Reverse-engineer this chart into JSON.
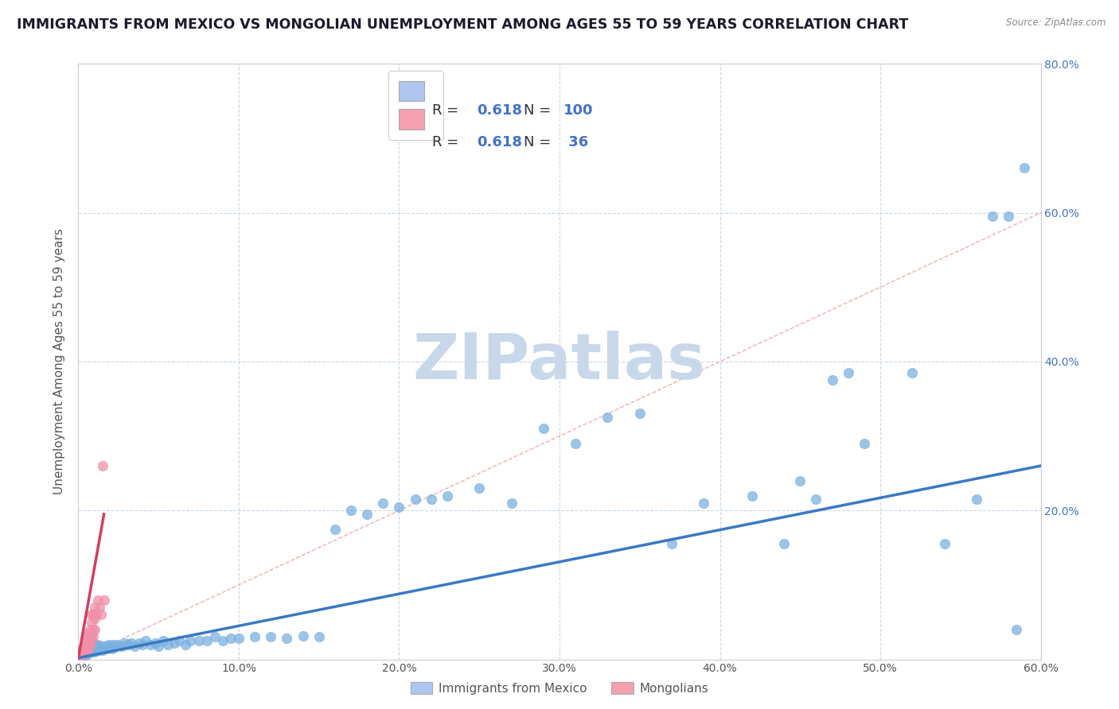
{
  "title": "IMMIGRANTS FROM MEXICO VS MONGOLIAN UNEMPLOYMENT AMONG AGES 55 TO 59 YEARS CORRELATION CHART",
  "source": "Source: ZipAtlas.com",
  "ylabel": "Unemployment Among Ages 55 to 59 years",
  "xlim": [
    0,
    0.6
  ],
  "ylim": [
    0,
    0.8
  ],
  "xtick_vals": [
    0.0,
    0.1,
    0.2,
    0.3,
    0.4,
    0.5,
    0.6
  ],
  "ytick_vals": [
    0.0,
    0.2,
    0.4,
    0.6,
    0.8
  ],
  "xtick_labels": [
    "0.0%",
    "10.0%",
    "20.0%",
    "30.0%",
    "40.0%",
    "50.0%",
    "60.0%"
  ],
  "ytick_labels_left": [
    "",
    "",
    "",
    "",
    ""
  ],
  "ytick_labels_right": [
    "",
    "20.0%",
    "40.0%",
    "60.0%",
    "80.0%"
  ],
  "legend_label_blue": "Immigrants from Mexico",
  "legend_label_pink": "Mongolians",
  "legend_color_blue": "#aec6f0",
  "legend_color_pink": "#f4a0b0",
  "r_blue": "0.618",
  "n_blue": "100",
  "r_pink": "0.618",
  "n_pink": "36",
  "scatter_color_blue": "#7ab0e0",
  "scatter_color_pink": "#f090a8",
  "trend_color_blue": "#3a78c4",
  "trend_color_pink": "#d04060",
  "diag_color": "#f0a0a0",
  "grid_color": "#c8d8e8",
  "watermark_text": "ZIPatlas",
  "watermark_color": "#c8d8ea",
  "background_color": "#ffffff",
  "title_color": "#1a1a2e",
  "accent_color": "#4472c4",
  "title_fontsize": 12.5,
  "tick_fontsize": 10,
  "label_fontsize": 11,
  "blue_x": [
    0.002,
    0.003,
    0.003,
    0.004,
    0.004,
    0.004,
    0.005,
    0.005,
    0.005,
    0.005,
    0.006,
    0.006,
    0.006,
    0.007,
    0.007,
    0.007,
    0.008,
    0.008,
    0.008,
    0.009,
    0.009,
    0.01,
    0.01,
    0.01,
    0.011,
    0.011,
    0.012,
    0.012,
    0.013,
    0.013,
    0.014,
    0.015,
    0.015,
    0.016,
    0.017,
    0.018,
    0.019,
    0.02,
    0.021,
    0.022,
    0.023,
    0.025,
    0.027,
    0.029,
    0.031,
    0.033,
    0.035,
    0.038,
    0.04,
    0.042,
    0.045,
    0.048,
    0.05,
    0.053,
    0.056,
    0.06,
    0.063,
    0.067,
    0.07,
    0.075,
    0.08,
    0.085,
    0.09,
    0.095,
    0.1,
    0.11,
    0.12,
    0.13,
    0.14,
    0.15,
    0.16,
    0.17,
    0.18,
    0.19,
    0.2,
    0.21,
    0.22,
    0.23,
    0.25,
    0.27,
    0.29,
    0.31,
    0.33,
    0.35,
    0.37,
    0.39,
    0.42,
    0.44,
    0.45,
    0.46,
    0.47,
    0.48,
    0.49,
    0.52,
    0.54,
    0.56,
    0.57,
    0.58,
    0.585,
    0.59
  ],
  "blue_y": [
    0.01,
    0.015,
    0.005,
    0.012,
    0.008,
    0.018,
    0.006,
    0.01,
    0.015,
    0.02,
    0.008,
    0.012,
    0.018,
    0.01,
    0.015,
    0.022,
    0.01,
    0.015,
    0.02,
    0.012,
    0.018,
    0.01,
    0.015,
    0.02,
    0.012,
    0.018,
    0.015,
    0.02,
    0.012,
    0.018,
    0.015,
    0.012,
    0.018,
    0.015,
    0.018,
    0.015,
    0.02,
    0.018,
    0.015,
    0.02,
    0.018,
    0.02,
    0.018,
    0.022,
    0.02,
    0.022,
    0.018,
    0.022,
    0.02,
    0.025,
    0.02,
    0.022,
    0.018,
    0.025,
    0.02,
    0.022,
    0.025,
    0.02,
    0.025,
    0.025,
    0.025,
    0.03,
    0.025,
    0.028,
    0.028,
    0.03,
    0.03,
    0.028,
    0.032,
    0.03,
    0.175,
    0.2,
    0.195,
    0.21,
    0.205,
    0.215,
    0.215,
    0.22,
    0.23,
    0.21,
    0.31,
    0.29,
    0.325,
    0.33,
    0.155,
    0.21,
    0.22,
    0.155,
    0.24,
    0.215,
    0.375,
    0.385,
    0.29,
    0.385,
    0.155,
    0.215,
    0.595,
    0.595,
    0.04,
    0.66
  ],
  "pink_x": [
    0.002,
    0.002,
    0.003,
    0.003,
    0.003,
    0.004,
    0.004,
    0.004,
    0.005,
    0.005,
    0.005,
    0.005,
    0.005,
    0.006,
    0.006,
    0.006,
    0.006,
    0.007,
    0.007,
    0.007,
    0.008,
    0.008,
    0.008,
    0.008,
    0.009,
    0.009,
    0.009,
    0.01,
    0.01,
    0.01,
    0.011,
    0.012,
    0.013,
    0.014,
    0.016,
    0.015
  ],
  "pink_y": [
    0.005,
    0.01,
    0.008,
    0.012,
    0.015,
    0.008,
    0.015,
    0.018,
    0.01,
    0.015,
    0.02,
    0.025,
    0.03,
    0.015,
    0.02,
    0.025,
    0.035,
    0.02,
    0.03,
    0.04,
    0.025,
    0.035,
    0.05,
    0.06,
    0.03,
    0.04,
    0.06,
    0.04,
    0.055,
    0.07,
    0.06,
    0.08,
    0.07,
    0.06,
    0.08,
    0.26
  ],
  "blue_trend": [
    0.0,
    0.6,
    0.002,
    0.26
  ],
  "pink_trend_x": [
    0.0,
    0.016
  ],
  "pink_trend_y": [
    0.002,
    0.195
  ]
}
